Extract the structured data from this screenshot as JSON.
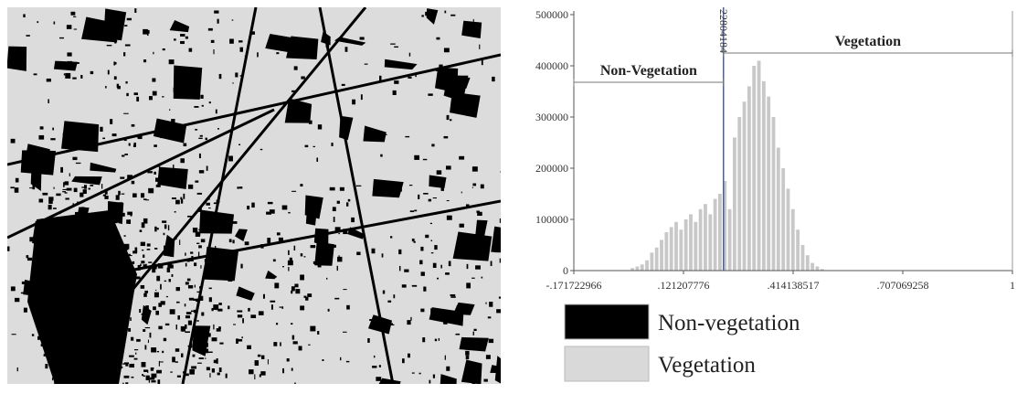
{
  "chart_data": {
    "type": "histogram",
    "bins": [
      -0.02,
      -0.007,
      0.006,
      0.019,
      0.032,
      0.045,
      0.058,
      0.071,
      0.084,
      0.097,
      0.11,
      0.123,
      0.136,
      0.149,
      0.162,
      0.175,
      0.188,
      0.201,
      0.214,
      0.227,
      0.24,
      0.253,
      0.266,
      0.279,
      0.292,
      0.305,
      0.318,
      0.331,
      0.344,
      0.357,
      0.37,
      0.383,
      0.396,
      0.409,
      0.422,
      0.435,
      0.448,
      0.461,
      0.474,
      0.487,
      0.5
    ],
    "values": [
      5000,
      8000,
      12000,
      20000,
      35000,
      45000,
      60000,
      75000,
      85000,
      95000,
      80000,
      100000,
      110000,
      95000,
      120000,
      130000,
      110000,
      140000,
      150000,
      175000,
      120000,
      260000,
      300000,
      330000,
      360000,
      400000,
      410000,
      370000,
      340000,
      300000,
      240000,
      200000,
      160000,
      120000,
      80000,
      50000,
      30000,
      15000,
      8000,
      3000
    ],
    "color": "#c8c8c8",
    "xlim": [
      -0.171722966,
      1
    ],
    "xticks": [
      {
        "value": -0.171722966,
        "label": "-.171722966"
      },
      {
        "value": 0.121207776,
        "label": ".121207776"
      },
      {
        "value": 0.414138517,
        "label": ".414138517"
      },
      {
        "value": 0.707069258,
        "label": ".707069258"
      },
      1
    ],
    "ylim": [
      0,
      500000
    ],
    "yticks": [
      0,
      100000,
      200000,
      300000,
      400000,
      500000
    ],
    "threshold": {
      "value": 0.22804184,
      "label": "22804184",
      "color": "#4a5fa8"
    },
    "annotations": [
      "Non-Vegetation",
      "Vegetation"
    ],
    "legend": [
      {
        "name": "Non-vegetation",
        "color": "#000000"
      },
      {
        "name": "Vegetation",
        "color": "#d9d9d9"
      }
    ]
  }
}
